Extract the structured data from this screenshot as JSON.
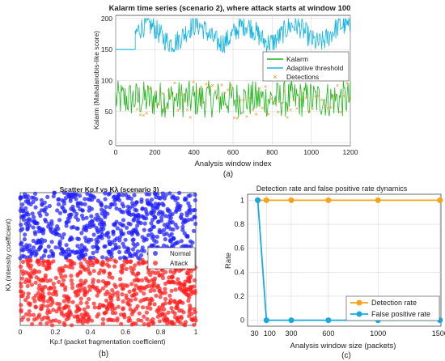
{
  "chart_data": [
    {
      "id": "a",
      "type": "line",
      "panel_label": "(a)",
      "title": "Kalarm time series (scenario 2), where attack starts at window 100",
      "xlabel": "Analysis window index",
      "ylabel": "Kalarm (Mahalanobis-like score)",
      "xlim": [
        0,
        1200
      ],
      "ylim": [
        -5,
        205
      ],
      "xticks": [
        0,
        200,
        400,
        600,
        800,
        1000,
        1200
      ],
      "yticks": [
        0,
        50,
        100,
        150,
        200
      ],
      "grid": true,
      "legend_position": "middle-right",
      "series": [
        {
          "name": "Kalarm",
          "color": "#22b51e",
          "description": "noisy, mostly 40-100 across windows 0-1200"
        },
        {
          "name": "Adaptive threshold",
          "color": "#16b4e0",
          "segments": [
            {
              "x": [
                0,
                100
              ],
              "y": [
                150,
                150
              ]
            }
          ],
          "noise_band": {
            "x_from": 100,
            "x_to": 1200,
            "center": 175,
            "amplitude": 18,
            "period": 250
          }
        },
        {
          "name": "Detections",
          "color": "#f08a00",
          "marker": "x",
          "x_range": [
            100,
            1200
          ],
          "y_range": [
            40,
            100
          ]
        }
      ]
    },
    {
      "id": "b",
      "type": "scatter",
      "panel_label": "(b)",
      "title": "Scatter Kp.f vs Kλ (scenario 3)",
      "xlabel": "Kp.f (packet fragmentation coefficient)",
      "ylabel": "Kλ (intensity coefficient)",
      "xlim": [
        0,
        1
      ],
      "ylim": [
        0,
        1
      ],
      "xticks": [
        0,
        0.2,
        0.4,
        0.6,
        0.8,
        1
      ],
      "xticklabels": [
        "0",
        "0.2",
        "0.4",
        "0.6",
        "0.8",
        "1"
      ],
      "yticks": [],
      "grid": false,
      "legend_position": "right-middle",
      "series": [
        {
          "name": "Normal",
          "color": "#2020ff",
          "x_range": [
            0,
            1
          ],
          "y_range": [
            0.5,
            1
          ]
        },
        {
          "name": "Attack",
          "color": "#ff2020",
          "x_range": [
            0,
            1
          ],
          "y_range": [
            0,
            0.5
          ]
        }
      ]
    },
    {
      "id": "c",
      "type": "line",
      "panel_label": "(c)",
      "title": "Detection rate and false positive rate dynamics",
      "xlabel": "Analysis window size (packets)",
      "ylabel": "Rate",
      "xlim": [
        0,
        1560
      ],
      "ylim": [
        -0.05,
        1.05
      ],
      "xticks": [
        30,
        100,
        300,
        600,
        1000,
        1500
      ],
      "yticks": [
        0,
        0.2,
        0.4,
        0.6,
        0.8,
        1
      ],
      "yticklabels": [
        "0",
        "0.2",
        "0.4",
        "0.6",
        "0.8",
        "1"
      ],
      "grid": true,
      "legend_position": "bottom-right",
      "series": [
        {
          "name": "Detection rate",
          "color": "#f5a41c",
          "x": [
            30,
            100,
            300,
            600,
            1000,
            1500
          ],
          "values": [
            1,
            1,
            1,
            1,
            1,
            1
          ]
        },
        {
          "name": "False positive rate",
          "color": "#1aa9df",
          "x": [
            30,
            100,
            300,
            600,
            1000,
            1500
          ],
          "values": [
            1,
            0,
            0,
            0,
            0,
            0
          ]
        }
      ]
    }
  ]
}
